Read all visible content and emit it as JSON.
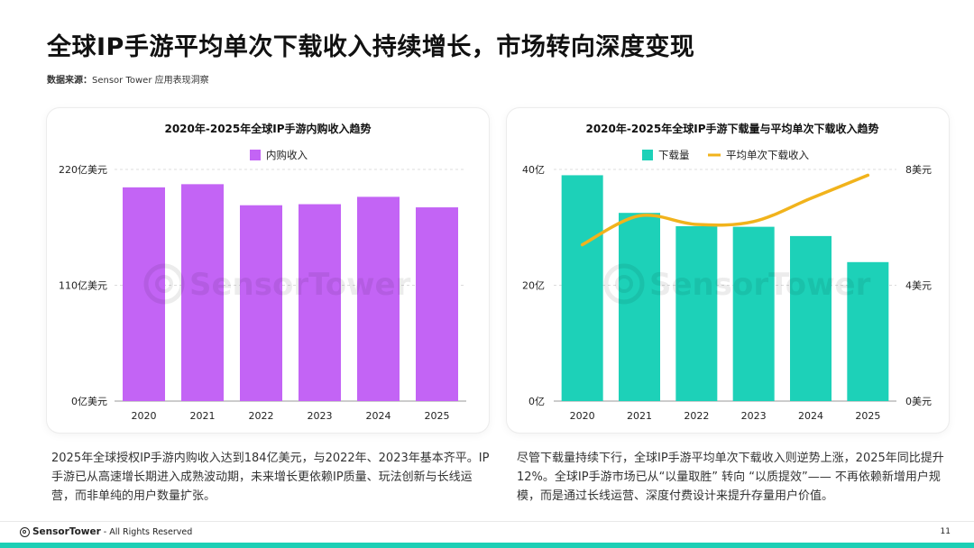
{
  "page": {
    "title": "全球IP手游平均单次下载收入持续增长，市场转向深度变现",
    "source_label": "数据来源：",
    "source_value": "Sensor Tower 应用表现洞察",
    "watermark": "SensorTower",
    "footer_brand": "SensorTower",
    "footer_rights": "- All Rights Reserved",
    "page_number": "11",
    "desc_left": "2025年全球授权IP手游内购收入达到184亿美元，与2022年、2023年基本齐平。IP手游已从高速增长期进入成熟波动期，未来增长更依赖IP质量、玩法创新与长线运营，而非单纯的用户数量扩张。",
    "desc_right": "尽管下载量持续下行，全球IP手游平均单次下载收入则逆势上涨，2025年同比提升12%。全球IP手游市场已从“以量取胜” 转向 “以质提效”—— 不再依赖新增用户规模，而是通过长线运营、深度付费设计来提升存量用户价值。"
  },
  "chart_data": [
    {
      "type": "bar",
      "title": "2020年-2025年全球IP手游内购收入趋势",
      "categories": [
        "2020",
        "2021",
        "2022",
        "2023",
        "2024",
        "2025"
      ],
      "series": [
        {
          "name": "内购收入",
          "values": [
            203,
            206,
            186,
            187,
            194,
            184
          ],
          "color": "#c364f5"
        }
      ],
      "ylim": [
        0,
        220
      ],
      "yticks": [
        {
          "value": 0,
          "label": "0亿美元"
        },
        {
          "value": 110,
          "label": "110亿美元"
        },
        {
          "value": 220,
          "label": "220亿美元"
        }
      ],
      "grid": true,
      "legend": "top-center"
    },
    {
      "type": "bar+line",
      "title": "2020年-2025年全球IP手游下载量与平均单次下载收入趋势",
      "categories": [
        "2020",
        "2021",
        "2022",
        "2023",
        "2024",
        "2025"
      ],
      "series": [
        {
          "name": "下载量",
          "type": "bar",
          "axis": "left",
          "values": [
            39,
            32.5,
            30.2,
            30.1,
            28.5,
            24
          ],
          "color": "#1dd1b8"
        },
        {
          "name": "平均单次下载收入",
          "type": "line",
          "axis": "right",
          "values": [
            5.4,
            6.4,
            6.1,
            6.2,
            7.0,
            7.8
          ],
          "color": "#f1b31c"
        }
      ],
      "ylim_left": [
        0,
        40
      ],
      "ylim_right": [
        0,
        8
      ],
      "yticks_left": [
        {
          "value": 0,
          "label": "0亿"
        },
        {
          "value": 20,
          "label": "20亿"
        },
        {
          "value": 40,
          "label": "40亿"
        }
      ],
      "yticks_right": [
        {
          "value": 0,
          "label": "0美元"
        },
        {
          "value": 4,
          "label": "4美元"
        },
        {
          "value": 8,
          "label": "8美元"
        }
      ],
      "grid": true,
      "legend": "top-center"
    }
  ]
}
